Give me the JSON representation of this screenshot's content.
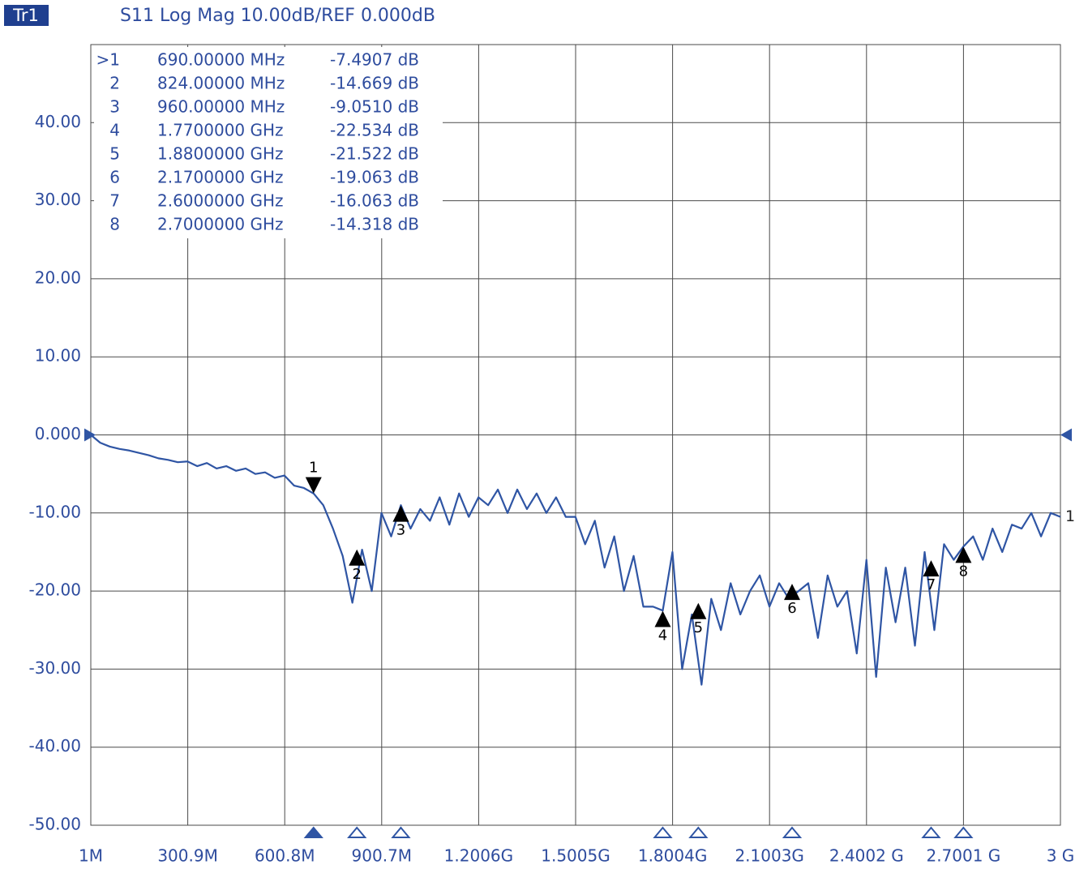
{
  "chart_data": {
    "type": "line",
    "trace_badge": "Tr1",
    "title": "S11 Log  Mag 10.00dB/REF 0.000dB",
    "ref_level": 0,
    "xlim": [
      1,
      3000
    ],
    "xticks": [
      {
        "value": 1,
        "label": "1M"
      },
      {
        "value": 300.9,
        "label": "300.9M"
      },
      {
        "value": 600.8,
        "label": "600.8M"
      },
      {
        "value": 900.7,
        "label": "900.7M"
      },
      {
        "value": 1200.6,
        "label": "1.2006G"
      },
      {
        "value": 1500.5,
        "label": "1.5005G"
      },
      {
        "value": 1800.4,
        "label": "1.8004G"
      },
      {
        "value": 2100.3,
        "label": "2.1003G"
      },
      {
        "value": 2400.2,
        "label": "2.4002 G"
      },
      {
        "value": 2700.1,
        "label": "2.7001 G"
      },
      {
        "value": 3000,
        "label": "3 G"
      }
    ],
    "ylim": [
      -50,
      50
    ],
    "yticks": [
      {
        "value": -50,
        "label": "-50.00"
      },
      {
        "value": -40,
        "label": "-40.00"
      },
      {
        "value": -30,
        "label": "-30.00"
      },
      {
        "value": -20,
        "label": "-20.00"
      },
      {
        "value": -10,
        "label": "-10.00"
      },
      {
        "value": 0,
        "label": "0.000"
      },
      {
        "value": 10,
        "label": "10.00"
      },
      {
        "value": 20,
        "label": "20.00"
      },
      {
        "value": 30,
        "label": "30.00"
      },
      {
        "value": 40,
        "label": "40.00"
      }
    ],
    "grid": true,
    "x": [
      1,
      30,
      60,
      90,
      120,
      150,
      180,
      210,
      240,
      270,
      300,
      330,
      360,
      390,
      420,
      450,
      480,
      510,
      540,
      570,
      600,
      630,
      660,
      690,
      720,
      750,
      780,
      810,
      840,
      870,
      900,
      930,
      960,
      990,
      1020,
      1050,
      1080,
      1110,
      1140,
      1170,
      1200,
      1230,
      1260,
      1290,
      1320,
      1350,
      1380,
      1410,
      1440,
      1470,
      1500,
      1530,
      1560,
      1590,
      1620,
      1650,
      1680,
      1710,
      1740,
      1770,
      1800,
      1830,
      1860,
      1890,
      1920,
      1950,
      1980,
      2010,
      2040,
      2070,
      2100,
      2130,
      2160,
      2190,
      2220,
      2250,
      2280,
      2310,
      2340,
      2370,
      2400,
      2430,
      2460,
      2490,
      2520,
      2550,
      2580,
      2610,
      2640,
      2670,
      2700,
      2730,
      2760,
      2790,
      2820,
      2850,
      2880,
      2910,
      2940,
      2970,
      3000
    ],
    "series": [
      {
        "name": "1",
        "color": "#2f55a4",
        "values": [
          0,
          -1,
          -1.5,
          -1.8,
          -2,
          -2.3,
          -2.6,
          -3,
          -3.2,
          -3.5,
          -3.4,
          -4,
          -3.6,
          -4.3,
          -4,
          -4.6,
          -4.3,
          -5,
          -4.8,
          -5.5,
          -5.2,
          -6.5,
          -6.8,
          -7.5,
          -9,
          -12,
          -15.5,
          -21.5,
          -14.7,
          -20,
          -10,
          -13,
          -9,
          -12,
          -9.5,
          -11,
          -8,
          -11.5,
          -7.5,
          -10.5,
          -8,
          -9,
          -7,
          -10,
          -7,
          -9.5,
          -7.5,
          -10,
          -8,
          -10.5,
          -10.5,
          -14,
          -11,
          -17,
          -13,
          -20,
          -15.5,
          -22,
          -22,
          -22.5,
          -15,
          -30,
          -23,
          -32,
          -21,
          -25,
          -19,
          -23,
          -20,
          -18,
          -22,
          -19,
          -21,
          -20,
          -19,
          -26,
          -18,
          -22,
          -20,
          -28,
          -16,
          -31,
          -17,
          -24,
          -17,
          -27,
          -15,
          -25,
          -14,
          -16,
          -14.3,
          -13,
          -16,
          -12,
          -15,
          -11.5,
          -12,
          -10,
          -13,
          -10,
          -10.5
        ]
      }
    ],
    "markers": [
      {
        "name": "1",
        "table_label": ">1",
        "frequency": "690.00000 MHz",
        "value_label": "-7.4907 dB",
        "x": 690,
        "value": -7.4907,
        "active": true
      },
      {
        "name": "2",
        "table_label": "2",
        "frequency": "824.00000 MHz",
        "value_label": "-14.669 dB",
        "x": 824,
        "value": -14.669,
        "active": false
      },
      {
        "name": "3",
        "table_label": "3",
        "frequency": "960.00000 MHz",
        "value_label": "-9.0510 dB",
        "x": 960,
        "value": -9.051,
        "active": false
      },
      {
        "name": "4",
        "table_label": "4",
        "frequency": "1.7700000 GHz",
        "value_label": "-22.534 dB",
        "x": 1770,
        "value": -22.534,
        "active": false
      },
      {
        "name": "5",
        "table_label": "5",
        "frequency": "1.8800000 GHz",
        "value_label": "-21.522 dB",
        "x": 1880,
        "value": -21.522,
        "active": false
      },
      {
        "name": "6",
        "table_label": "6",
        "frequency": "2.1700000 GHz",
        "value_label": "-19.063 dB",
        "x": 2170,
        "value": -19.063,
        "active": false
      },
      {
        "name": "7",
        "table_label": "7",
        "frequency": "2.6000000 GHz",
        "value_label": "-16.063 dB",
        "x": 2600,
        "value": -16.063,
        "active": false
      },
      {
        "name": "8",
        "table_label": "8",
        "frequency": "2.7000000 GHz",
        "value_label": "-14.318 dB",
        "x": 2700,
        "value": -14.318,
        "active": false
      }
    ]
  }
}
